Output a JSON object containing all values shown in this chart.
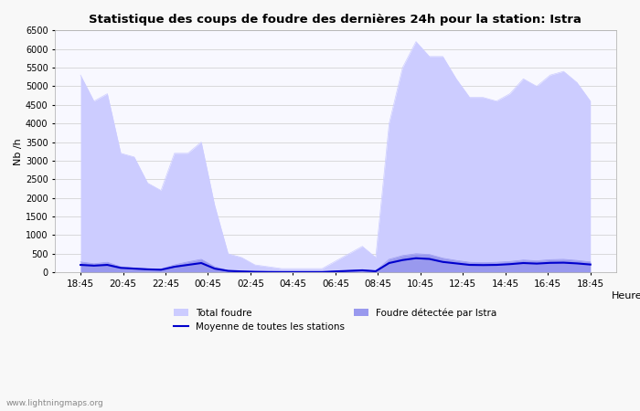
{
  "title": "Statistique des coups de foudre des dernières 24h pour la station: Istra",
  "xlabel": "Heure",
  "ylabel": "Nb /h",
  "watermark": "www.lightningmaps.org",
  "ylim": [
    0,
    6500
  ],
  "yticks": [
    0,
    500,
    1000,
    1500,
    2000,
    2500,
    3000,
    3500,
    4000,
    4500,
    5000,
    5500,
    6000,
    6500
  ],
  "xtick_labels": [
    "18:45",
    "20:45",
    "22:45",
    "00:45",
    "02:45",
    "04:45",
    "06:45",
    "08:45",
    "10:45",
    "12:45",
    "14:45",
    "16:45",
    "18:45"
  ],
  "legend_labels": [
    "Total foudre",
    "Moyenne de toutes les stations",
    "Foudre détectée par Istra"
  ],
  "total_foudre_color": "#ccccff",
  "istra_color": "#9999ee",
  "moyenne_color": "#0000cc",
  "background_color": "#f8f8ff",
  "grid_color": "#cccccc",
  "total_foudre": [
    5300,
    4600,
    4800,
    3200,
    3100,
    2400,
    2200,
    3200,
    3200,
    3500,
    1800,
    500,
    400,
    200,
    150,
    100,
    100,
    100,
    100,
    300,
    500,
    700,
    400,
    4000,
    5500,
    6200,
    5800,
    5800,
    5200,
    4700,
    4700,
    4600,
    4800,
    5200,
    5000,
    5300,
    5400,
    5100,
    4600
  ],
  "istra_foudre": [
    280,
    230,
    270,
    150,
    120,
    100,
    90,
    200,
    280,
    350,
    150,
    50,
    30,
    20,
    15,
    10,
    10,
    10,
    10,
    30,
    50,
    70,
    40,
    350,
    450,
    500,
    480,
    380,
    320,
    270,
    260,
    270,
    290,
    330,
    310,
    340,
    350,
    320,
    280
  ],
  "moyenne": [
    200,
    180,
    200,
    120,
    100,
    80,
    70,
    150,
    200,
    250,
    100,
    40,
    25,
    15,
    10,
    8,
    8,
    8,
    8,
    25,
    40,
    55,
    30,
    250,
    330,
    380,
    360,
    280,
    240,
    200,
    195,
    200,
    220,
    250,
    235,
    255,
    260,
    240,
    210
  ]
}
